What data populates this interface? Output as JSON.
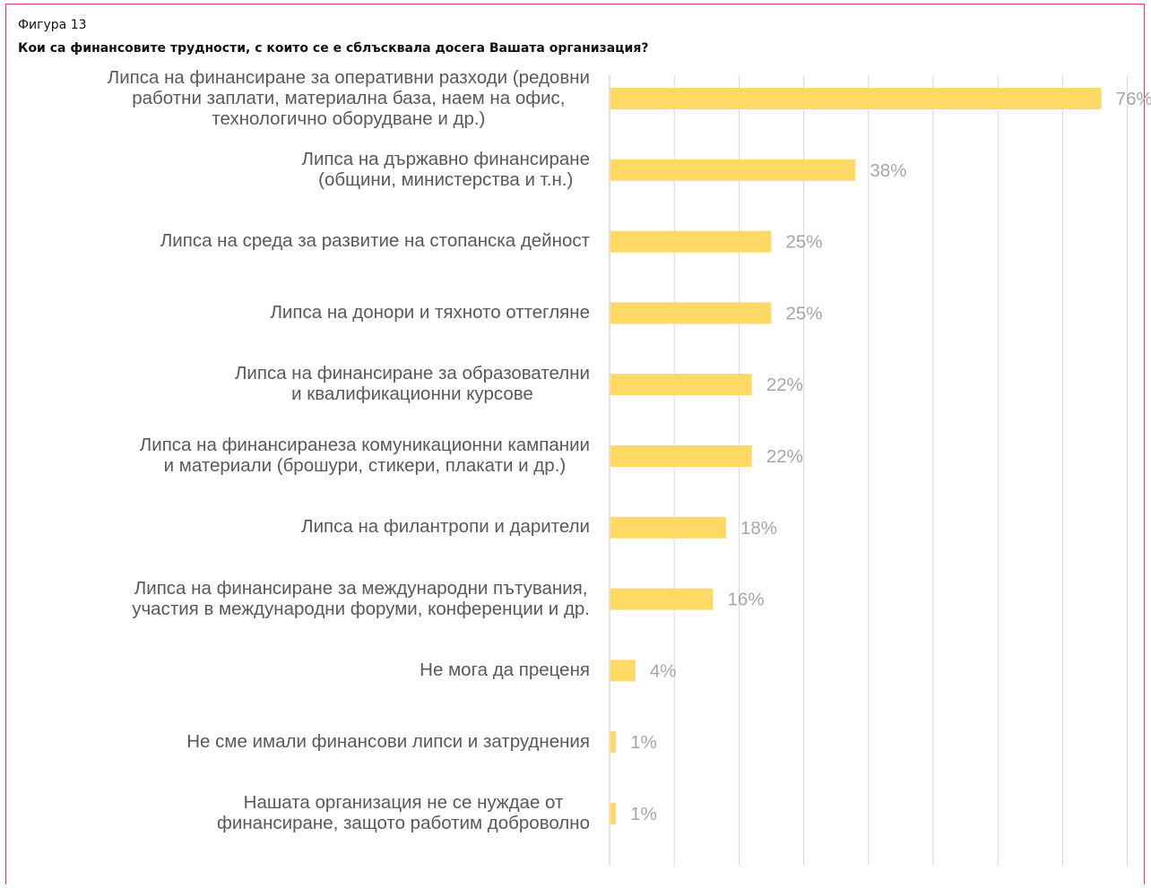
{
  "figure_label": "Фигура 13",
  "figure_title": "Кои са финансовите трудности, с които се е сблъсквала досега Вашата организация?",
  "colors": {
    "bar": "#FFD966",
    "grid": "#D9D9D9",
    "value_label": "#A6A6A6",
    "category_label": "#595959",
    "frame": "#D63384"
  },
  "chart_data": {
    "type": "bar",
    "orientation": "horizontal",
    "title": "Кои са финансовите трудности, с които се е сблъсквала досега Вашата организация?",
    "xlabel": "",
    "ylabel": "",
    "xlim": [
      0,
      80
    ],
    "grid": true,
    "legend": "none",
    "categories": [
      "Липса на финансиране за оперативни разходи (редовни\nработни заплати, материална база, наем на офис,\nтехнологично оборудване и др.)",
      "Липса на държавно финансиране\n(общини, министерства и т.н.)",
      "Липса на среда за развитие на стопанска дейност",
      "Липса на донори и тяхното оттегляне",
      "Липса на финансиране за образователни\nи квалификационни курсове",
      "Липса на финансиранеза комуникационни кампании\nи материали (брошури, стикери, плакати и др.)",
      "Липса на филантропи и дарители",
      "Липса на финансиране за международни пътувания,\nучастия в международни форуми, конференции и др.",
      "Не мога да преценя",
      "Не сме имали финансови липси и затруднения",
      "Нашата организация не се нуждае от\nфинансиране, защото работим доброволно"
    ],
    "values": [
      76,
      38,
      25,
      25,
      22,
      22,
      18,
      16,
      4,
      1,
      1
    ],
    "value_labels": [
      "76%",
      "38%",
      "25%",
      "25%",
      "22%",
      "22%",
      "18%",
      "16%",
      "4%",
      "1%",
      "1%"
    ]
  }
}
